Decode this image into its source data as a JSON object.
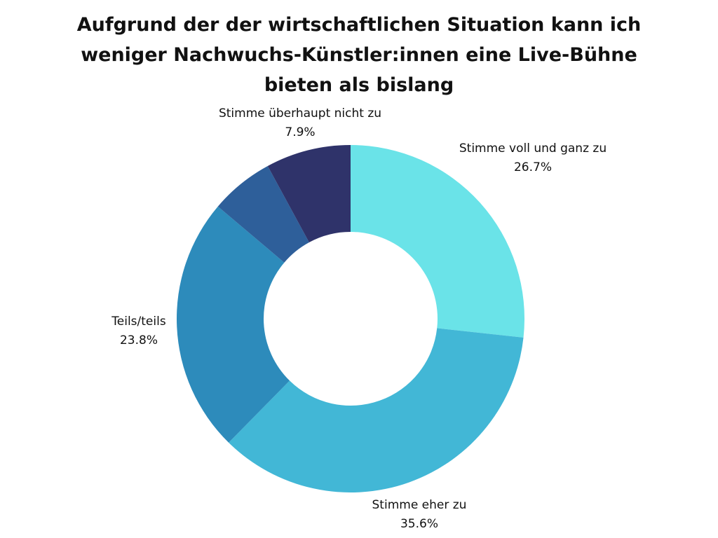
{
  "chart_data": {
    "type": "pie",
    "title_lines": [
      "Aufgrund der der wirtschaftlichen Situation kann ich",
      "weniger Nachwuchs-Künstler:innen eine Live-Bühne",
      "bieten als bislang"
    ],
    "categories": [
      "Stimme voll und ganz zu",
      "Stimme eher zu",
      "Teils/teils",
      "Stimme eher nicht zu",
      "Stimme überhaupt nicht zu"
    ],
    "values": [
      26.7,
      35.6,
      23.8,
      5.9,
      7.9
    ],
    "value_labels": [
      "26.7%",
      "35.6%",
      "23.8%",
      "",
      "7.9%"
    ],
    "category_labels_shown": [
      "Stimme voll und ganz zu",
      "Stimme eher zu",
      "Teils/teils",
      "",
      "Stimme überhaupt nicht zu"
    ],
    "colors": [
      "#6ae3e8",
      "#42b7d6",
      "#2d8bbb",
      "#2e5f9a",
      "#2f336a"
    ],
    "donut": true
  }
}
